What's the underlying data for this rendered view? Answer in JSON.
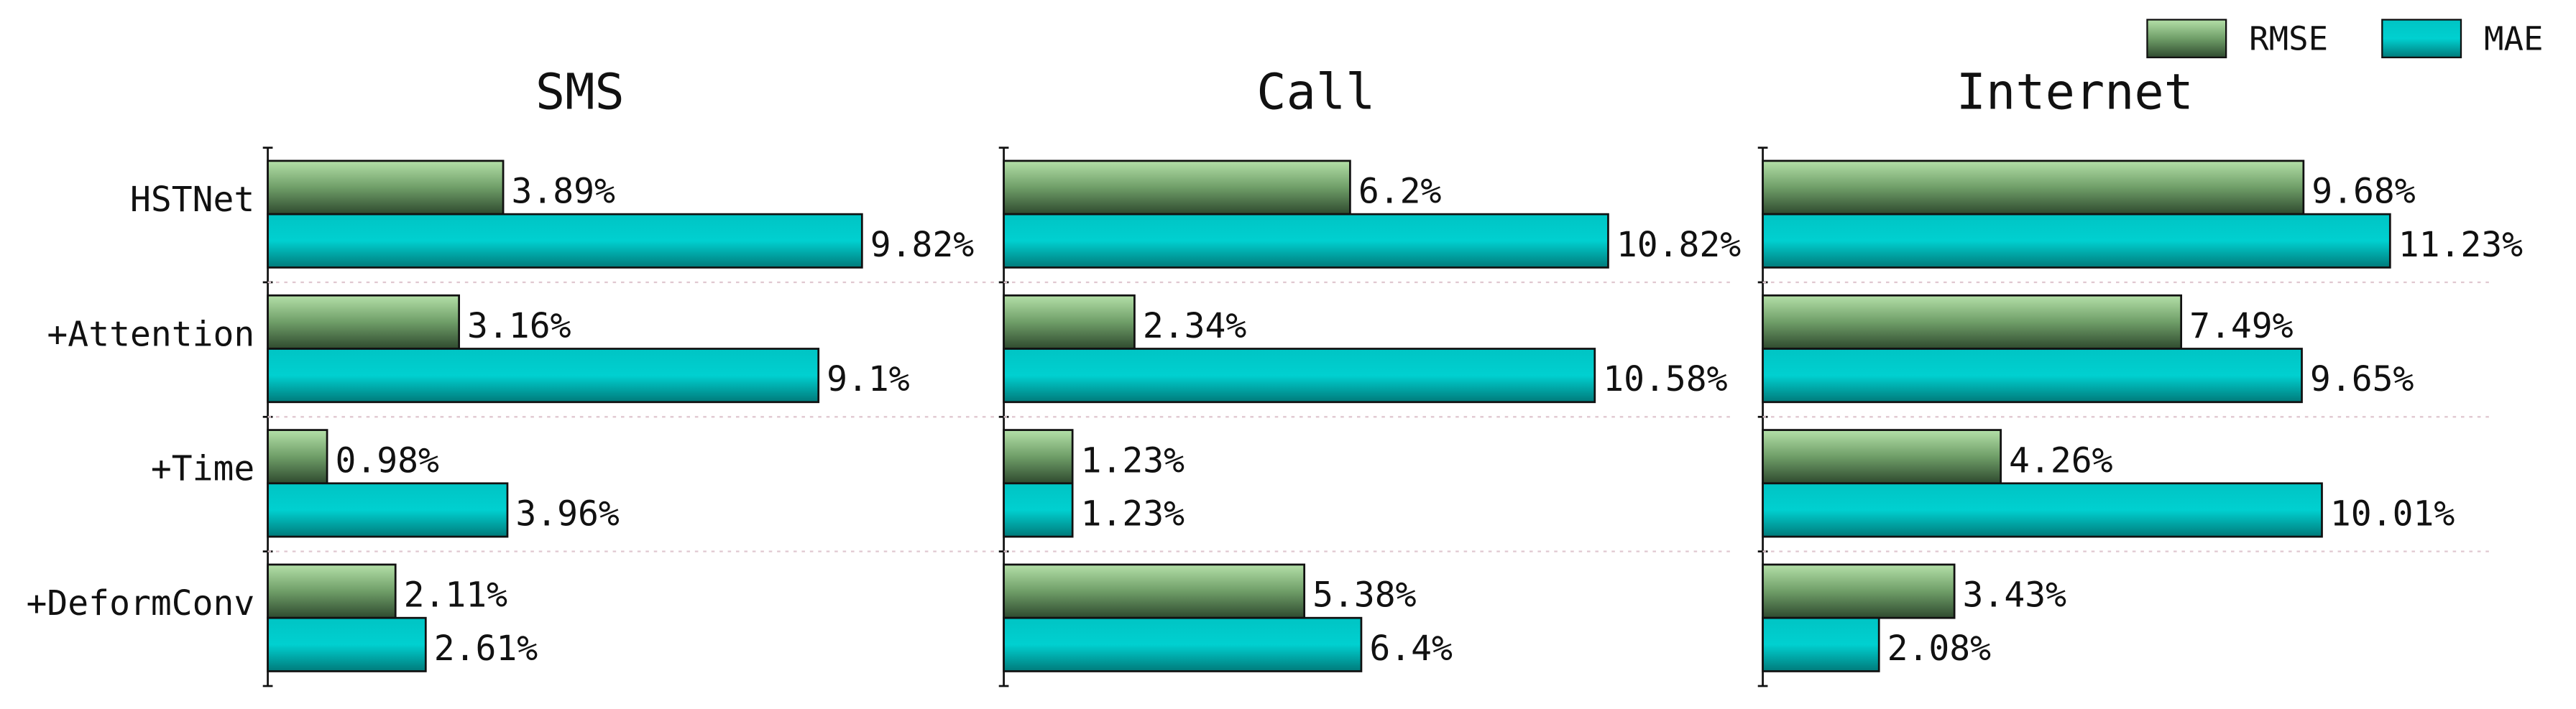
{
  "chart_data": {
    "type": "bar",
    "orientation": "horizontal",
    "categories": [
      "HSTNet",
      "+Attention",
      "+Time",
      "+DeformConv"
    ],
    "series": [
      {
        "name": "RMSE",
        "color": "#5e9a5e"
      },
      {
        "name": "MAE",
        "color": "#00a8a8"
      }
    ],
    "grid": true,
    "legend": "upper right",
    "panels": [
      {
        "title": "SMS",
        "xlim": [
          0,
          12
        ],
        "series": [
          {
            "values": [
              3.89,
              3.16,
              0.98,
              2.11
            ],
            "value_labels": [
              "3.89%",
              "3.16%",
              "0.98%",
              "2.11%"
            ]
          },
          {
            "values": [
              9.82,
              9.1,
              3.96,
              2.61
            ],
            "value_labels": [
              "9.82%",
              "9.1%",
              "3.96%",
              "2.61%"
            ]
          }
        ]
      },
      {
        "title": "Call",
        "xlim": [
          0,
          13
        ],
        "series": [
          {
            "values": [
              6.2,
              2.34,
              1.23,
              5.38
            ],
            "value_labels": [
              "6.2%",
              "2.34%",
              "1.23%",
              "5.38%"
            ]
          },
          {
            "values": [
              10.82,
              10.58,
              1.23,
              6.4
            ],
            "value_labels": [
              "10.82%",
              "10.58%",
              "1.23%",
              "6.4%"
            ]
          }
        ]
      },
      {
        "title": "Internet",
        "xlim": [
          0,
          13
        ],
        "series": [
          {
            "values": [
              9.68,
              7.49,
              4.26,
              3.43
            ],
            "value_labels": [
              "9.68%",
              "7.49%",
              "4.26%",
              "3.43%"
            ]
          },
          {
            "values": [
              11.23,
              9.65,
              10.01,
              2.08
            ],
            "value_labels": [
              "11.23%",
              "9.65%",
              "10.01%",
              "2.08%"
            ]
          }
        ]
      }
    ]
  }
}
